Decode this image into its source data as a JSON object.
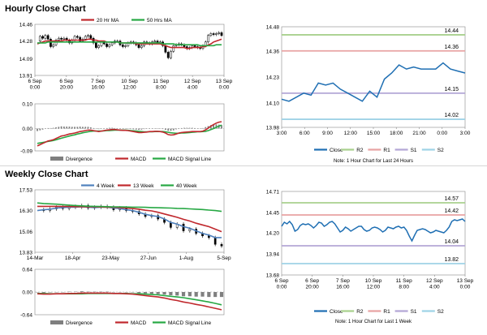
{
  "sections": {
    "hourly_title": "Hourly Close Chart",
    "weekly_title": "Weekly Close Chart"
  },
  "colors": {
    "candle": "#000000",
    "ma_short": "#c0282d",
    "ma_long": "#27a844",
    "macd": "#c0282d",
    "signal": "#27a844",
    "divergence": "#7f7f7f",
    "ma_4": "#4f81bd",
    "close": "#1f6fb3",
    "r2": "#a9d18e",
    "r1": "#e8a3a3",
    "s1": "#b4a7d6",
    "s2": "#9fd3e6"
  },
  "chart_data": [
    {
      "id": "hourly-price",
      "type": "candlestick",
      "legend": [
        "20 Hr MA",
        "50 Hrs MA"
      ],
      "legend_position": "top",
      "ylim": [
        13.91,
        14.46
      ],
      "yticks": [
        "14.46",
        "14.28",
        "14.09",
        "13.91"
      ],
      "xticks": [
        "6 Sep\n0:00",
        "6 Sep\n20:00",
        "7 Sep\n16:00",
        "10 Sep\n12:00",
        "11 Sep\n8:00",
        "12 Sep\n4:00",
        "13 Sep\n0:00"
      ],
      "close": [
        14.28,
        14.33,
        14.31,
        14.34,
        14.3,
        14.22,
        14.24,
        14.29,
        14.31,
        14.3,
        14.31,
        14.29,
        14.26,
        14.29,
        14.33,
        14.32,
        14.28,
        14.3,
        14.33,
        14.34,
        14.31,
        14.26,
        14.21,
        14.23,
        14.27,
        14.25,
        14.22,
        14.24,
        14.26,
        14.28,
        14.28,
        14.24,
        14.22,
        14.23,
        14.26,
        14.27,
        14.26,
        14.24,
        14.21,
        14.23,
        14.27,
        14.26,
        14.25,
        14.27,
        14.28,
        14.26,
        14.27,
        14.23,
        14.16,
        14.1,
        14.17,
        14.23,
        14.24,
        14.25,
        14.24,
        14.22,
        14.2,
        14.21,
        14.23,
        14.22,
        14.21,
        14.2,
        14.23,
        14.27,
        14.34,
        14.36,
        14.35,
        14.36,
        14.37,
        14.34
      ],
      "ma20": [
        14.25,
        14.26,
        14.27,
        14.28,
        14.28,
        14.28,
        14.28,
        14.28,
        14.28,
        14.28,
        14.29,
        14.29,
        14.29,
        14.29,
        14.29,
        14.29,
        14.29,
        14.29,
        14.29,
        14.3,
        14.3,
        14.29,
        14.29,
        14.28,
        14.28,
        14.28,
        14.27,
        14.27,
        14.27,
        14.27,
        14.27,
        14.26,
        14.26,
        14.26,
        14.26,
        14.26,
        14.26,
        14.25,
        14.25,
        14.25,
        14.25,
        14.25,
        14.25,
        14.25,
        14.25,
        14.25,
        14.25,
        14.24,
        14.23,
        14.22,
        14.21,
        14.21,
        14.21,
        14.21,
        14.21,
        14.21,
        14.2,
        14.2,
        14.21,
        14.21,
        14.21,
        14.21,
        14.22,
        14.22,
        14.24,
        14.25,
        14.27,
        14.28,
        14.29,
        14.3
      ],
      "ma50": [
        14.26,
        14.26,
        14.26,
        14.26,
        14.27,
        14.27,
        14.27,
        14.27,
        14.27,
        14.27,
        14.27,
        14.27,
        14.27,
        14.27,
        14.27,
        14.27,
        14.27,
        14.27,
        14.27,
        14.27,
        14.27,
        14.27,
        14.27,
        14.27,
        14.27,
        14.27,
        14.27,
        14.27,
        14.27,
        14.27,
        14.27,
        14.26,
        14.26,
        14.26,
        14.26,
        14.26,
        14.26,
        14.26,
        14.26,
        14.26,
        14.26,
        14.26,
        14.26,
        14.26,
        14.26,
        14.26,
        14.26,
        14.25,
        14.25,
        14.25,
        14.25,
        14.25,
        14.24,
        14.24,
        14.24,
        14.24,
        14.24,
        14.24,
        14.24,
        14.24,
        14.24,
        14.23,
        14.23,
        14.23,
        14.23,
        14.23,
        14.23,
        14.24,
        14.24,
        14.24
      ]
    },
    {
      "id": "hourly-macd",
      "type": "line+bar",
      "legend": [
        "Divergence",
        "MACD",
        "MACD Signal Line"
      ],
      "legend_position": "bottom",
      "ylim": [
        -0.09,
        0.1
      ],
      "yticks": [
        "0.10",
        "0.00",
        "-0.09"
      ],
      "macd": [
        -0.07,
        -0.065,
        -0.06,
        -0.055,
        -0.05,
        -0.048,
        -0.045,
        -0.04,
        -0.035,
        -0.03,
        -0.028,
        -0.025,
        -0.022,
        -0.02,
        -0.018,
        -0.015,
        -0.012,
        -0.01,
        -0.008,
        -0.006,
        -0.006,
        -0.008,
        -0.01,
        -0.012,
        -0.01,
        -0.008,
        -0.006,
        -0.005,
        -0.004,
        -0.004,
        -0.005,
        -0.006,
        -0.007,
        -0.007,
        -0.008,
        -0.01,
        -0.012,
        -0.014,
        -0.016,
        -0.016,
        -0.015,
        -0.014,
        -0.012,
        -0.012,
        -0.011,
        -0.011,
        -0.012,
        -0.014,
        -0.018,
        -0.024,
        -0.026,
        -0.025,
        -0.022,
        -0.018,
        -0.016,
        -0.015,
        -0.014,
        -0.013,
        -0.012,
        -0.012,
        -0.012,
        -0.012,
        -0.01,
        -0.005,
        0.002,
        0.01,
        0.016,
        0.022,
        0.026,
        0.028
      ],
      "signal": [
        -0.06,
        -0.058,
        -0.056,
        -0.054,
        -0.052,
        -0.05,
        -0.048,
        -0.045,
        -0.042,
        -0.039,
        -0.036,
        -0.033,
        -0.03,
        -0.027,
        -0.025,
        -0.022,
        -0.02,
        -0.017,
        -0.015,
        -0.013,
        -0.011,
        -0.01,
        -0.01,
        -0.01,
        -0.01,
        -0.009,
        -0.008,
        -0.008,
        -0.007,
        -0.006,
        -0.006,
        -0.006,
        -0.006,
        -0.006,
        -0.007,
        -0.008,
        -0.009,
        -0.01,
        -0.011,
        -0.012,
        -0.013,
        -0.013,
        -0.013,
        -0.013,
        -0.012,
        -0.012,
        -0.012,
        -0.012,
        -0.013,
        -0.015,
        -0.017,
        -0.018,
        -0.019,
        -0.019,
        -0.018,
        -0.018,
        -0.017,
        -0.016,
        -0.015,
        -0.014,
        -0.013,
        -0.013,
        -0.012,
        -0.011,
        -0.008,
        -0.004,
        0.0,
        0.005,
        0.01,
        0.014
      ],
      "divergence": [
        -0.01,
        -0.007,
        -0.004,
        -0.001,
        0.002,
        0.002,
        0.003,
        0.005,
        0.007,
        0.009,
        0.008,
        0.008,
        0.008,
        0.007,
        0.007,
        0.007,
        0.008,
        0.007,
        0.007,
        0.007,
        0.005,
        0.002,
        0.0,
        -0.002,
        0.0,
        0.001,
        0.002,
        0.003,
        0.003,
        0.002,
        0.001,
        0.0,
        -0.001,
        -0.001,
        -0.001,
        -0.002,
        -0.003,
        -0.004,
        -0.005,
        -0.004,
        -0.002,
        -0.001,
        0.001,
        0.001,
        0.001,
        0.001,
        0.0,
        -0.002,
        -0.005,
        -0.009,
        -0.009,
        -0.007,
        -0.003,
        0.001,
        0.002,
        0.003,
        0.003,
        0.003,
        0.003,
        0.002,
        0.001,
        0.001,
        0.002,
        0.006,
        0.01,
        0.014,
        0.016,
        0.017,
        0.016,
        0.014
      ]
    },
    {
      "id": "hourly-close-levels",
      "type": "line",
      "ylim": [
        13.98,
        14.48
      ],
      "yticks": [
        "14.48",
        "14.36",
        "14.23",
        "14.10",
        "13.98"
      ],
      "xticks": [
        "3:00",
        "6:00",
        "9:00",
        "12:00",
        "15:00",
        "18:00",
        "21:00",
        "0:00",
        "3:00"
      ],
      "close": [
        14.12,
        14.11,
        14.13,
        14.15,
        14.14,
        14.2,
        14.19,
        14.2,
        14.17,
        14.15,
        14.13,
        14.11,
        14.16,
        14.13,
        14.22,
        14.25,
        14.29,
        14.27,
        14.28,
        14.27,
        14.27,
        14.27,
        14.3,
        14.27,
        14.26,
        14.25
      ],
      "levels": {
        "R2": 14.44,
        "R1": 14.36,
        "S1": 14.15,
        "S2": 14.02
      },
      "level_labels": [
        "14.44",
        "14.36",
        "14.15",
        "14.02"
      ],
      "legend": [
        "Close",
        "R2",
        "R1",
        "S1",
        "S2"
      ],
      "note": "Note: 1 Hour Chart for Last 24 Hours"
    },
    {
      "id": "weekly-price",
      "type": "candlestick",
      "legend": [
        "4 Week",
        "13 Week",
        "40 Week"
      ],
      "legend_position": "top",
      "ylim": [
        13.83,
        17.53
      ],
      "yticks": [
        "17.53",
        "16.30",
        "15.06",
        "13.83"
      ],
      "xticks": [
        "14-Mar",
        "18-Apr",
        "23-May",
        "27-Jun",
        "1-Aug",
        "5-Sep"
      ],
      "close": [
        16.35,
        16.3,
        16.4,
        16.5,
        16.42,
        16.55,
        16.5,
        16.6,
        16.45,
        16.5,
        16.55,
        16.5,
        16.35,
        16.45,
        16.3,
        16.25,
        16.1,
        15.95,
        16.0,
        15.8,
        15.6,
        15.3,
        15.5,
        15.1,
        15.2,
        14.95,
        14.8,
        14.7,
        14.3,
        14.2
      ],
      "ma4": [
        16.3,
        16.35,
        16.38,
        16.45,
        16.48,
        16.5,
        16.5,
        16.52,
        16.5,
        16.48,
        16.5,
        16.5,
        16.45,
        16.42,
        16.35,
        16.3,
        16.2,
        16.08,
        16.0,
        15.95,
        15.8,
        15.6,
        15.5,
        15.35,
        15.25,
        15.1,
        14.95,
        14.85,
        14.7,
        14.7
      ],
      "ma13": [
        16.55,
        16.55,
        16.55,
        16.55,
        16.54,
        16.54,
        16.53,
        16.53,
        16.52,
        16.52,
        16.51,
        16.5,
        16.5,
        16.48,
        16.45,
        16.42,
        16.38,
        16.32,
        16.28,
        16.2,
        16.1,
        16.0,
        15.9,
        15.78,
        15.68,
        15.55,
        15.45,
        15.35,
        15.2,
        15.05
      ],
      "ma40": [
        16.75,
        16.72,
        16.7,
        16.68,
        16.65,
        16.62,
        16.6,
        16.58,
        16.56,
        16.55,
        16.54,
        16.53,
        16.52,
        16.52,
        16.51,
        16.5,
        16.5,
        16.49,
        16.48,
        16.47,
        16.46,
        16.45,
        16.43,
        16.42,
        16.4,
        16.38,
        16.36,
        16.33,
        16.3,
        16.25
      ]
    },
    {
      "id": "weekly-macd",
      "type": "line+bar",
      "legend": [
        "Divergence",
        "MACD",
        "MACD Signal Line"
      ],
      "legend_position": "bottom",
      "ylim": [
        -0.64,
        0.64
      ],
      "yticks": [
        "0.64",
        "0.00",
        "-0.64"
      ],
      "macd": [
        -0.05,
        -0.06,
        -0.06,
        -0.05,
        -0.05,
        -0.04,
        -0.04,
        -0.03,
        -0.03,
        -0.03,
        -0.03,
        -0.03,
        -0.04,
        -0.04,
        -0.05,
        -0.06,
        -0.08,
        -0.1,
        -0.12,
        -0.14,
        -0.17,
        -0.21,
        -0.24,
        -0.28,
        -0.31,
        -0.35,
        -0.38,
        -0.42,
        -0.46,
        -0.5
      ],
      "signal": [
        -0.04,
        -0.04,
        -0.05,
        -0.05,
        -0.05,
        -0.05,
        -0.05,
        -0.05,
        -0.04,
        -0.04,
        -0.04,
        -0.04,
        -0.04,
        -0.04,
        -0.04,
        -0.05,
        -0.05,
        -0.06,
        -0.07,
        -0.08,
        -0.1,
        -0.12,
        -0.14,
        -0.16,
        -0.19,
        -0.22,
        -0.25,
        -0.28,
        -0.32,
        -0.36
      ],
      "divergence": [
        -0.01,
        -0.02,
        -0.01,
        0.0,
        0.0,
        0.01,
        0.01,
        0.02,
        0.01,
        0.01,
        0.01,
        0.01,
        0.0,
        0.0,
        -0.01,
        -0.01,
        -0.03,
        -0.04,
        -0.05,
        -0.06,
        -0.07,
        -0.09,
        -0.1,
        -0.12,
        -0.12,
        -0.13,
        -0.13,
        -0.14,
        -0.14,
        -0.14
      ]
    },
    {
      "id": "weekly-close-levels",
      "type": "line",
      "ylim": [
        13.68,
        14.71
      ],
      "yticks": [
        "14.71",
        "14.45",
        "14.20",
        "13.94",
        "13.68"
      ],
      "xticks": [
        "6 Sep\n0:00",
        "6 Sep\n20:00",
        "7 Sep\n16:00",
        "10 Sep\n12:00",
        "11 Sep\n8:00",
        "12 Sep\n4:00",
        "13 Sep\n0:00"
      ],
      "close": [
        14.28,
        14.33,
        14.31,
        14.34,
        14.3,
        14.22,
        14.24,
        14.29,
        14.31,
        14.3,
        14.31,
        14.29,
        14.26,
        14.29,
        14.33,
        14.32,
        14.28,
        14.3,
        14.33,
        14.34,
        14.31,
        14.26,
        14.21,
        14.23,
        14.27,
        14.25,
        14.22,
        14.24,
        14.26,
        14.28,
        14.28,
        14.24,
        14.22,
        14.23,
        14.26,
        14.27,
        14.26,
        14.24,
        14.21,
        14.23,
        14.27,
        14.26,
        14.25,
        14.27,
        14.28,
        14.26,
        14.27,
        14.23,
        14.16,
        14.1,
        14.17,
        14.23,
        14.24,
        14.25,
        14.24,
        14.22,
        14.2,
        14.21,
        14.23,
        14.22,
        14.21,
        14.2,
        14.23,
        14.27,
        14.34,
        14.36,
        14.35,
        14.36,
        14.37,
        14.34
      ],
      "levels": {
        "R2": 14.57,
        "R1": 14.42,
        "S1": 14.04,
        "S2": 13.82
      },
      "level_labels": [
        "14.57",
        "14.42",
        "14.04",
        "13.82"
      ],
      "legend": [
        "Close",
        "R2",
        "R1",
        "S1",
        "S2"
      ],
      "note": "Note: 1 Hour Chart for Last 1 Week"
    }
  ]
}
